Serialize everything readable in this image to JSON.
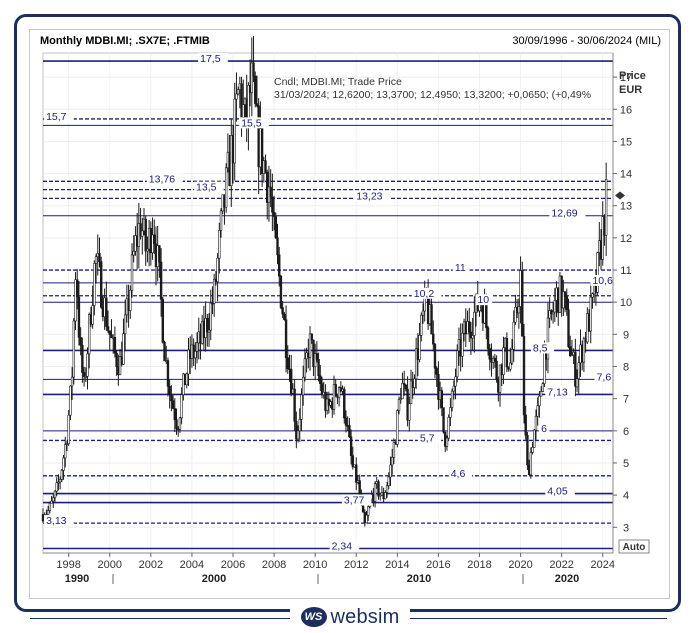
{
  "header": {
    "title": "Monthly MDBI.MI; .SX7E; .FTMIB",
    "date_range": "30/09/1996 - 30/06/2024 (MIL)"
  },
  "brand": {
    "icon_text": "WS",
    "name": "websim"
  },
  "chart_data": {
    "type": "candlestick",
    "y_axis": {
      "label_line1": "Price",
      "label_line2": "EUR",
      "ylim": [
        2.2,
        17.75
      ],
      "ticks": [
        3,
        4,
        5,
        6,
        7,
        8,
        9,
        10,
        11,
        12,
        13,
        14,
        15,
        16,
        17
      ]
    },
    "x_axis": {
      "range": [
        1996.75,
        2024.5
      ],
      "minor_ticks": [
        1998,
        2000,
        2002,
        2004,
        2006,
        2008,
        2010,
        2012,
        2014,
        2016,
        2018,
        2020,
        2022,
        2024
      ],
      "major_ticks": [
        1990,
        2000,
        2010,
        2020
      ]
    },
    "auto_label": "Auto",
    "info_box": {
      "line1": "Cndl; MDBI.MI; Trade Price",
      "line2": "31/03/2024; 12,6200; 13,3700; 12,4950; 13,3200; +0,0650; (+0,49%"
    },
    "levels": [
      {
        "value": 17.5,
        "label": "17,5",
        "style": "solid",
        "label_x": 2004.4
      },
      {
        "value": 15.7,
        "label": "15,7",
        "style": "dashed",
        "label_x": 1996.9
      },
      {
        "value": 15.5,
        "label": "15,5",
        "style": "solid",
        "label_x": 2006.4
      },
      {
        "value": 13.76,
        "label": "13,76",
        "style": "dashed",
        "label_x": 2001.9
      },
      {
        "value": 13.5,
        "label": "13,5",
        "style": "dashed",
        "label_x": 2004.2
      },
      {
        "value": 13.23,
        "label": "13,23",
        "style": "dashed",
        "label_x": 2012.0
      },
      {
        "value": 12.69,
        "label": "12,69",
        "style": "solid",
        "label_x": 2021.5
      },
      {
        "value": 11,
        "label": "11",
        "style": "dashed",
        "label_x": 2016.8
      },
      {
        "value": 10.6,
        "label": "10,6",
        "style": "solid",
        "label_x": 2023.5
      },
      {
        "value": 10.2,
        "label": "10,2",
        "style": "dashed",
        "label_x": 2014.8
      },
      {
        "value": 10,
        "label": "10",
        "style": "solid",
        "label_x": 2017.9
      },
      {
        "value": 8.5,
        "label": "8,5",
        "style": "solid",
        "label_x": 2020.6
      },
      {
        "value": 7.6,
        "label": "7,6",
        "style": "solid",
        "label_x": 2023.7
      },
      {
        "value": 7.13,
        "label": "7,13",
        "style": "solid",
        "label_x": 2021.3
      },
      {
        "value": 6,
        "label": "6",
        "style": "solid",
        "label_x": 2021.0
      },
      {
        "value": 5.7,
        "label": "5,7",
        "style": "dashed",
        "label_x": 2015.1
      },
      {
        "value": 4.6,
        "label": "4,6",
        "style": "dashed",
        "label_x": 2016.6
      },
      {
        "value": 4.05,
        "label": "4,05",
        "style": "solid",
        "label_x": 2021.3
      },
      {
        "value": 3.77,
        "label": "3,77",
        "style": "solid",
        "label_x": 2011.4
      },
      {
        "value": 3.13,
        "label": "3,13",
        "style": "dashed",
        "label_x": 1996.9
      },
      {
        "value": 2.34,
        "label": "2,34",
        "style": "solid",
        "label_x": 2010.8
      }
    ],
    "price_path": [
      [
        1996.75,
        3.4
      ],
      [
        1997.0,
        3.5
      ],
      [
        1997.3,
        3.9
      ],
      [
        1997.6,
        4.6
      ],
      [
        1997.9,
        5.8
      ],
      [
        1998.15,
        7.5
      ],
      [
        1998.35,
        11.3
      ],
      [
        1998.55,
        8.5
      ],
      [
        1998.75,
        7.3
      ],
      [
        1999.0,
        9.2
      ],
      [
        1999.3,
        11.4
      ],
      [
        1999.6,
        10.4
      ],
      [
        1999.9,
        9.3
      ],
      [
        2000.2,
        8.4
      ],
      [
        2000.5,
        8.1
      ],
      [
        2000.8,
        9.4
      ],
      [
        2001.2,
        11.6
      ],
      [
        2001.5,
        12.5
      ],
      [
        2001.8,
        11.5
      ],
      [
        2002.1,
        12.6
      ],
      [
        2002.4,
        10.8
      ],
      [
        2002.7,
        8.3
      ],
      [
        2003.0,
        7.0
      ],
      [
        2003.3,
        6.2
      ],
      [
        2003.6,
        7.4
      ],
      [
        2003.9,
        8.3
      ],
      [
        2004.2,
        8.5
      ],
      [
        2004.5,
        8.9
      ],
      [
        2004.8,
        9.5
      ],
      [
        2005.1,
        10.3
      ],
      [
        2005.4,
        12.2
      ],
      [
        2005.7,
        13.7
      ],
      [
        2006.0,
        15.0
      ],
      [
        2006.3,
        16.7
      ],
      [
        2006.6,
        15.5
      ],
      [
        2006.9,
        16.8
      ],
      [
        2007.2,
        15.1
      ],
      [
        2007.5,
        14.3
      ],
      [
        2007.8,
        13.5
      ],
      [
        2008.0,
        12.0
      ],
      [
        2008.3,
        10.5
      ],
      [
        2008.6,
        8.7
      ],
      [
        2008.9,
        7.3
      ],
      [
        2009.1,
        5.8
      ],
      [
        2009.4,
        7.3
      ],
      [
        2009.7,
        8.8
      ],
      [
        2010.0,
        8.1
      ],
      [
        2010.3,
        7.3
      ],
      [
        2010.6,
        6.6
      ],
      [
        2010.9,
        7.1
      ],
      [
        2011.2,
        7.5
      ],
      [
        2011.5,
        6.4
      ],
      [
        2011.8,
        4.9
      ],
      [
        2012.1,
        4.3
      ],
      [
        2012.4,
        3.0
      ],
      [
        2012.7,
        3.9
      ],
      [
        2013.0,
        4.2
      ],
      [
        2013.3,
        3.9
      ],
      [
        2013.6,
        4.6
      ],
      [
        2013.9,
        5.8
      ],
      [
        2014.2,
        7.5
      ],
      [
        2014.5,
        6.7
      ],
      [
        2014.8,
        7.9
      ],
      [
        2015.1,
        8.9
      ],
      [
        2015.4,
        10.1
      ],
      [
        2015.7,
        8.9
      ],
      [
        2016.0,
        7.4
      ],
      [
        2016.3,
        5.7
      ],
      [
        2016.6,
        6.6
      ],
      [
        2016.9,
        8.1
      ],
      [
        2017.2,
        8.9
      ],
      [
        2017.5,
        9.3
      ],
      [
        2017.8,
        9.7
      ],
      [
        2018.1,
        10.2
      ],
      [
        2018.4,
        9.0
      ],
      [
        2018.7,
        8.1
      ],
      [
        2018.9,
        7.6
      ],
      [
        2019.2,
        8.5
      ],
      [
        2019.5,
        8.1
      ],
      [
        2019.8,
        9.6
      ],
      [
        2020.0,
        10.8
      ],
      [
        2020.15,
        6.8
      ],
      [
        2020.35,
        4.6
      ],
      [
        2020.6,
        5.8
      ],
      [
        2020.9,
        6.7
      ],
      [
        2021.2,
        8.6
      ],
      [
        2021.5,
        9.5
      ],
      [
        2021.8,
        10.3
      ],
      [
        2022.1,
        10.1
      ],
      [
        2022.4,
        8.6
      ],
      [
        2022.7,
        7.7
      ],
      [
        2023.0,
        8.6
      ],
      [
        2023.3,
        9.4
      ],
      [
        2023.6,
        10.1
      ],
      [
        2023.9,
        11.8
      ],
      [
        2024.2,
        13.3
      ]
    ],
    "last_price": 13.32
  }
}
